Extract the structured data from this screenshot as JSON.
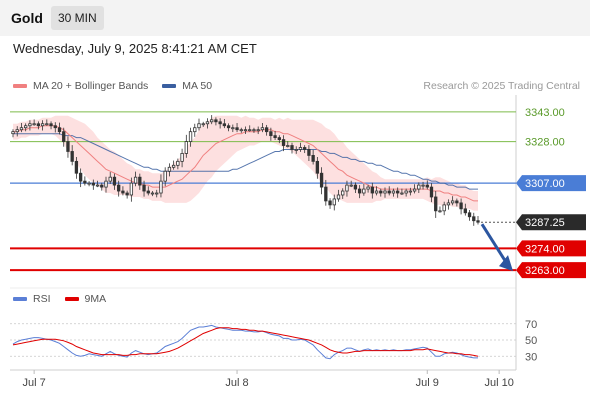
{
  "header": {
    "instrument": "Gold",
    "interval": "30 MIN"
  },
  "datetime": "Wednesday, July 9, 2025 8:41:21 AM CET",
  "watermark": "Research © 2025 Trading Central",
  "legend_main": [
    {
      "label": "MA 20 + Bollinger Bands",
      "color": "#f08080"
    },
    {
      "label": "MA 50",
      "color": "#3a5fa0"
    }
  ],
  "legend_rsi": [
    {
      "label": "RSI",
      "color": "#5b7fd6"
    },
    {
      "label": "9MA",
      "color": "#e00000"
    }
  ],
  "colors": {
    "resistance": "#7dbb4a",
    "current": "#4a7dd6",
    "support": "#e00000",
    "candle": "#333333",
    "band_fill": "#fde0e0",
    "ma20": "#f08080",
    "ma50": "#3a5fa0",
    "arrow": "#2c56a0",
    "last": "#2a2a2a"
  },
  "chart_data": [
    {
      "type": "line",
      "subtype": "candlestick",
      "title": "",
      "ylim": [
        3255,
        3348
      ],
      "xlabels": [
        "Jul 7",
        "Jul 8",
        "Jul 9",
        "Jul 10"
      ],
      "xlabel_index": [
        5,
        53,
        98,
        115
      ],
      "price_levels": [
        {
          "value": 3343.0,
          "label": "3343.00",
          "kind": "resistance"
        },
        {
          "value": 3328.0,
          "label": "3328.00",
          "kind": "resistance"
        },
        {
          "value": 3307.0,
          "label": "3307.00",
          "kind": "current"
        },
        {
          "value": 3287.25,
          "label": "3287.25",
          "kind": "last"
        },
        {
          "value": 3274.0,
          "label": "3274.00",
          "kind": "support"
        },
        {
          "value": 3263.0,
          "label": "3263.00",
          "kind": "support"
        }
      ],
      "close": [
        3333,
        3334,
        3335,
        3336,
        3337,
        3337,
        3336,
        3337,
        3337,
        3336,
        3335,
        3333,
        3328,
        3323,
        3318,
        3312,
        3308,
        3307,
        3307,
        3306,
        3306,
        3305,
        3308,
        3310,
        3306,
        3303,
        3302,
        3301,
        3307,
        3310,
        3306,
        3303,
        3302,
        3302,
        3302,
        3308,
        3313,
        3315,
        3316,
        3318,
        3322,
        3328,
        3333,
        3335,
        3337,
        3337,
        3338,
        3339,
        3338,
        3337,
        3336,
        3335,
        3335,
        3334,
        3334,
        3334,
        3334,
        3334,
        3334,
        3335,
        3333,
        3331,
        3330,
        3329,
        3326,
        3326,
        3324,
        3324,
        3325,
        3324,
        3321,
        3318,
        3312,
        3305,
        3298,
        3296,
        3299,
        3301,
        3303,
        3306,
        3306,
        3304,
        3302,
        3304,
        3305,
        3302,
        3303,
        3302,
        3303,
        3302,
        3303,
        3302,
        3302,
        3303,
        3303,
        3304,
        3306,
        3306,
        3305,
        3300,
        3293,
        3293,
        3296,
        3297,
        3298,
        3297,
        3294,
        3292,
        3290,
        3288,
        3287.25
      ],
      "ma20": [
        3333,
        3333,
        3334,
        3334,
        3335,
        3335,
        3335,
        3336,
        3336,
        3336,
        3336,
        3335,
        3334,
        3332,
        3330,
        3328,
        3326,
        3324,
        3322,
        3320,
        3318,
        3316,
        3314,
        3313,
        3312,
        3311,
        3310,
        3309,
        3308,
        3307,
        3307,
        3306,
        3306,
        3305,
        3305,
        3305,
        3305,
        3306,
        3307,
        3308,
        3309,
        3311,
        3313,
        3315,
        3318,
        3321,
        3323,
        3325,
        3327,
        3328,
        3329,
        3330,
        3331,
        3332,
        3332,
        3333,
        3333,
        3333,
        3333,
        3334,
        3334,
        3334,
        3333,
        3333,
        3332,
        3332,
        3331,
        3330,
        3329,
        3328,
        3327,
        3326,
        3324,
        3322,
        3320,
        3318,
        3316,
        3314,
        3313,
        3311,
        3310,
        3309,
        3308,
        3307,
        3306,
        3305,
        3305,
        3304,
        3304,
        3304,
        3304,
        3304,
        3304,
        3304,
        3304,
        3304,
        3304,
        3304,
        3304,
        3303,
        3303,
        3303,
        3302,
        3302,
        3301,
        3301,
        3300,
        3300,
        3299,
        3298,
        3298
      ],
      "ma50": [
        3332,
        3332,
        3332,
        3332,
        3332,
        3332,
        3332,
        3332,
        3332,
        3332,
        3332,
        3332,
        3331,
        3331,
        3331,
        3330,
        3330,
        3329,
        3328,
        3327,
        3326,
        3325,
        3324,
        3323,
        3322,
        3321,
        3320,
        3319,
        3318,
        3317,
        3316,
        3315,
        3315,
        3314,
        3314,
        3313,
        3313,
        3313,
        3313,
        3313,
        3313,
        3313,
        3313,
        3313,
        3313,
        3313,
        3313,
        3313,
        3313,
        3313,
        3313,
        3313,
        3314,
        3314,
        3315,
        3316,
        3317,
        3318,
        3319,
        3320,
        3321,
        3322,
        3323,
        3323,
        3324,
        3324,
        3324,
        3324,
        3324,
        3324,
        3324,
        3324,
        3324,
        3323,
        3323,
        3322,
        3322,
        3321,
        3320,
        3320,
        3319,
        3319,
        3318,
        3318,
        3317,
        3317,
        3316,
        3316,
        3315,
        3314,
        3313,
        3313,
        3312,
        3312,
        3311,
        3311,
        3310,
        3309,
        3309,
        3308,
        3308,
        3307,
        3307,
        3306,
        3306,
        3305,
        3305,
        3305,
        3304,
        3304,
        3304
      ],
      "bb_width": [
        4,
        4,
        4,
        4,
        4,
        4,
        4,
        4,
        4,
        4,
        5,
        6,
        7,
        9,
        10,
        11,
        12,
        13,
        13,
        13,
        12,
        12,
        12,
        11,
        11,
        10,
        9,
        8,
        8,
        7,
        7,
        7,
        7,
        7,
        7,
        7,
        8,
        9,
        10,
        11,
        12,
        14,
        15,
        15,
        16,
        16,
        15,
        15,
        14,
        13,
        12,
        11,
        10,
        9,
        8,
        8,
        7,
        7,
        6,
        6,
        6,
        6,
        6,
        7,
        7,
        8,
        8,
        9,
        10,
        11,
        12,
        13,
        14,
        15,
        15,
        16,
        16,
        15,
        15,
        14,
        13,
        12,
        11,
        10,
        9,
        8,
        7,
        6,
        5,
        5,
        5,
        5,
        5,
        5,
        5,
        5,
        5,
        5,
        6,
        6,
        7,
        7,
        7,
        6,
        6,
        6,
        6,
        6,
        5,
        5,
        5
      ]
    },
    {
      "type": "line",
      "title": "",
      "ylim": [
        18,
        82
      ],
      "yticks": [
        70,
        50,
        30
      ],
      "series": [
        {
          "name": "RSI",
          "values": [
            45,
            48,
            50,
            51,
            52,
            53,
            53,
            52,
            51,
            50,
            48,
            46,
            42,
            38,
            34,
            31,
            30,
            31,
            33,
            32,
            31,
            30,
            33,
            36,
            33,
            31,
            30,
            29,
            34,
            37,
            35,
            33,
            32,
            33,
            34,
            38,
            42,
            44,
            46,
            48,
            52,
            57,
            62,
            64,
            66,
            66,
            67,
            68,
            66,
            65,
            64,
            63,
            62,
            62,
            62,
            61,
            61,
            60,
            60,
            61,
            59,
            57,
            56,
            55,
            52,
            52,
            50,
            50,
            51,
            50,
            47,
            44,
            38,
            33,
            28,
            27,
            32,
            35,
            37,
            40,
            40,
            38,
            36,
            38,
            39,
            37,
            38,
            37,
            38,
            37,
            38,
            37,
            37,
            38,
            38,
            39,
            40,
            41,
            40,
            35,
            30,
            30,
            33,
            34,
            35,
            34,
            32,
            30,
            29,
            28,
            28
          ]
        },
        {
          "name": "9MA",
          "values": [
            44,
            45,
            46,
            47,
            48,
            49,
            50,
            51,
            51,
            51,
            51,
            50,
            49,
            47,
            45,
            42,
            40,
            38,
            36,
            34,
            33,
            32,
            32,
            32,
            32,
            32,
            31,
            31,
            32,
            32,
            33,
            33,
            33,
            33,
            33,
            34,
            35,
            36,
            38,
            40,
            43,
            46,
            49,
            52,
            55,
            58,
            60,
            62,
            64,
            65,
            65,
            65,
            64,
            64,
            63,
            63,
            62,
            62,
            61,
            61,
            60,
            59,
            58,
            57,
            56,
            55,
            54,
            53,
            52,
            51,
            50,
            48,
            46,
            44,
            41,
            38,
            36,
            35,
            34,
            34,
            35,
            36,
            36,
            37,
            37,
            37,
            37,
            37,
            37,
            37,
            37,
            37,
            37,
            37,
            37,
            38,
            38,
            38,
            39,
            38,
            37,
            36,
            35,
            34,
            34,
            33,
            33,
            32,
            32,
            31,
            30
          ]
        }
      ]
    }
  ]
}
